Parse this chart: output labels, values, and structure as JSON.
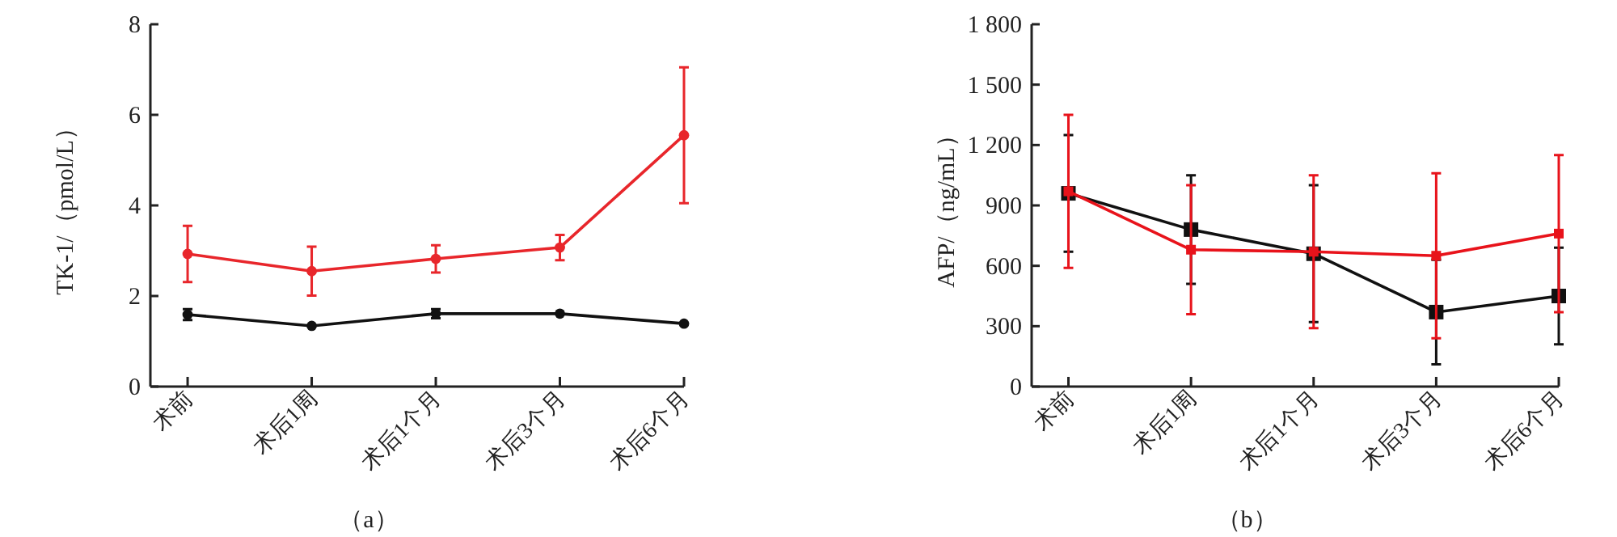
{
  "chart_data": [
    {
      "type": "line",
      "ylabel": "TK-1/（pmol/L）",
      "annotations": [
        "（a）"
      ],
      "marker": "circle",
      "categories": [
        "术前",
        "术后1周",
        "术后1个月",
        "术后3个月",
        "术后6个月"
      ],
      "ylim": [
        0,
        8
      ],
      "yticks": [
        0,
        2,
        4,
        6,
        8
      ],
      "series": [
        {
          "color": "#e8262b",
          "values": [
            2.93,
            2.55,
            2.82,
            3.07,
            5.55
          ],
          "errors": [
            0.62,
            0.54,
            0.3,
            0.28,
            1.5
          ]
        },
        {
          "color": "#111111",
          "values": [
            1.59,
            1.34,
            1.61,
            1.61,
            1.39
          ],
          "errors": [
            0.12,
            null,
            0.1,
            null,
            null
          ]
        }
      ]
    },
    {
      "type": "line",
      "ylabel": "AFP/（ng/mL）",
      "annotations": [
        "（b）"
      ],
      "marker": "square",
      "categories": [
        "术前",
        "术后1周",
        "术后1个月",
        "术后3个月",
        "术后6个月"
      ],
      "ylim": [
        0,
        1800
      ],
      "yticks": [
        0,
        300,
        600,
        900,
        {
          "value": 1200,
          "label": "1 200"
        },
        {
          "value": 1500,
          "label": "1 500"
        },
        {
          "value": 1800,
          "label": "1 800"
        }
      ],
      "series": [
        {
          "color": "#111111",
          "values": [
            960,
            780,
            660,
            370,
            450
          ],
          "errors": [
            290,
            270,
            340,
            260,
            240
          ]
        },
        {
          "color": "#e8131b",
          "values": [
            970,
            680,
            670,
            650,
            760
          ],
          "errors": [
            380,
            320,
            380,
            410,
            390
          ]
        }
      ]
    }
  ]
}
